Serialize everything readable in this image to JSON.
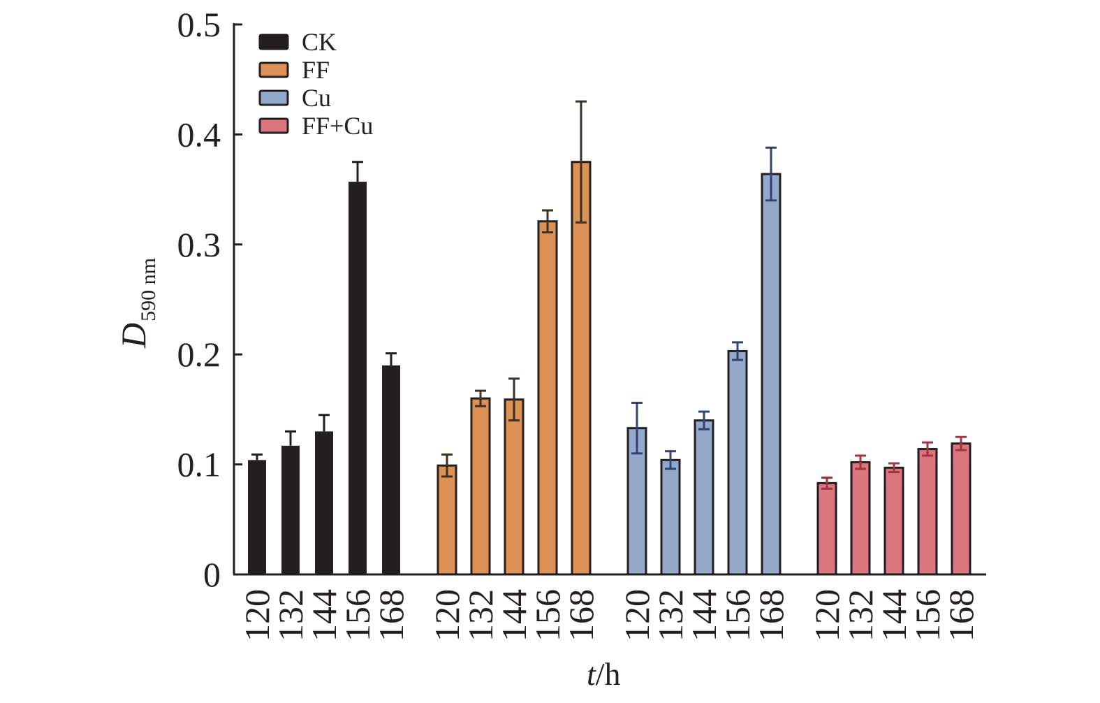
{
  "chart_data": {
    "type": "bar",
    "title": "",
    "xlabel": "t/h",
    "xlabel_italic_part": "t",
    "xlabel_rest": "/h",
    "ylabel": "D590 nm",
    "ylabel_main": "D",
    "ylabel_sub": "590 nm",
    "ylim": [
      0,
      0.5
    ],
    "yticks": [
      0,
      0.1,
      0.2,
      0.3,
      0.4,
      0.5
    ],
    "ytick_labels": [
      "0",
      "0.1",
      "0.2",
      "0.3",
      "0.4",
      "0.5"
    ],
    "categories": [
      "120",
      "132",
      "144",
      "156",
      "168"
    ],
    "legend_position": "top-left",
    "grid": false,
    "series": [
      {
        "name": "CK",
        "color": "#231f20",
        "errcolor": "#231f20",
        "values": [
          0.104,
          0.117,
          0.13,
          0.357,
          0.19
        ],
        "errors": [
          0.005,
          0.013,
          0.015,
          0.018,
          0.011
        ]
      },
      {
        "name": "FF",
        "color": "#dc9157",
        "errcolor": "#3d3126",
        "values": [
          0.099,
          0.16,
          0.159,
          0.321,
          0.375
        ],
        "errors": [
          0.01,
          0.007,
          0.019,
          0.01,
          0.055
        ]
      },
      {
        "name": "Cu",
        "color": "#91a9cb",
        "errcolor": "#2f4470",
        "values": [
          0.133,
          0.104,
          0.14,
          0.203,
          0.364
        ],
        "errors": [
          0.023,
          0.008,
          0.008,
          0.008,
          0.024
        ]
      },
      {
        "name": "FF+Cu",
        "color": "#db757e",
        "errcolor": "#a3343f",
        "values": [
          0.083,
          0.102,
          0.097,
          0.114,
          0.119
        ],
        "errors": [
          0.005,
          0.006,
          0.004,
          0.006,
          0.006
        ]
      }
    ]
  }
}
